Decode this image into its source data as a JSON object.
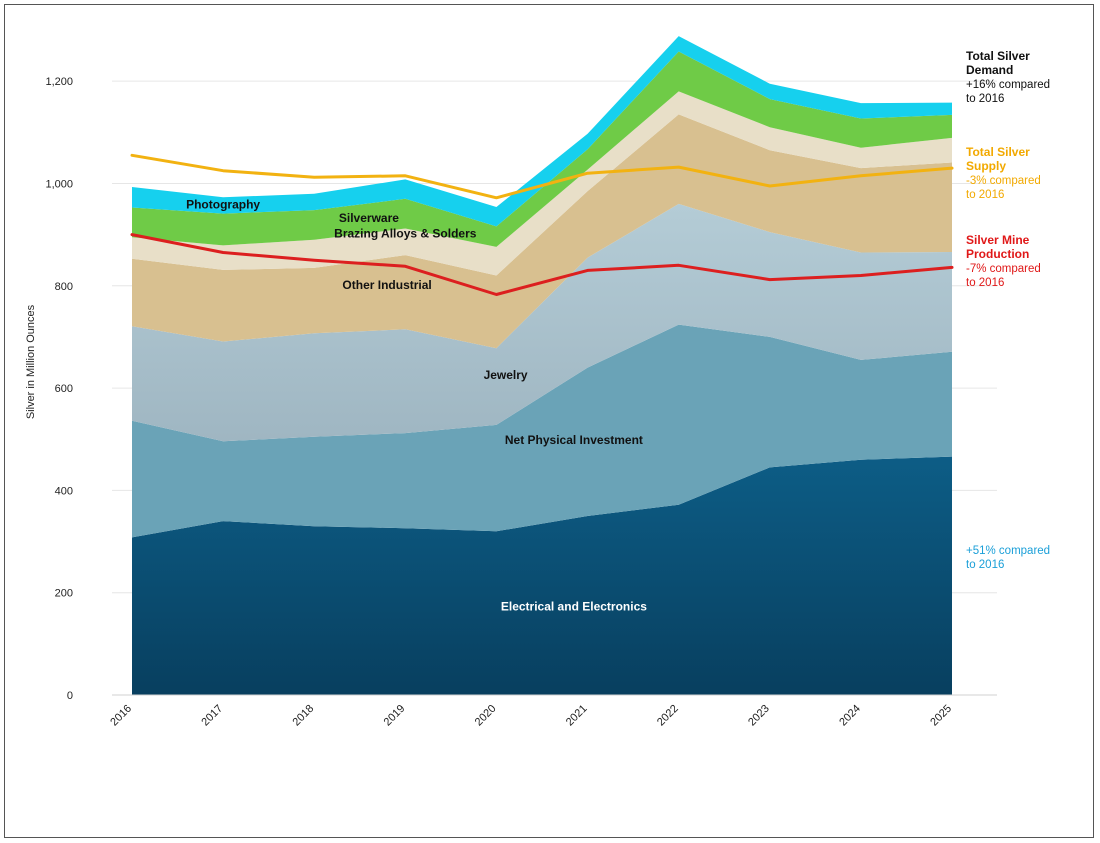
{
  "chart_data": {
    "type": "area",
    "stacked": true,
    "title": "",
    "xlabel": "",
    "ylabel": "Silver in Million Ounces",
    "categories": [
      "2016",
      "2017",
      "2018",
      "2019",
      "2020",
      "2021",
      "2022",
      "2023",
      "2024",
      "2025"
    ],
    "ylim": [
      0,
      1300
    ],
    "yticks": [
      0,
      200,
      400,
      600,
      800,
      1000,
      1200
    ],
    "ytick_labels": [
      "0",
      "200",
      "400",
      "600",
      "800",
      "1,000",
      "1,200"
    ],
    "grid": true,
    "series": [
      {
        "name": "Electrical and Electronics",
        "values": [
          308,
          340,
          330,
          326,
          320,
          350,
          372,
          445,
          460,
          466
        ],
        "color": "#0a4d74",
        "label_color": "#ffffff"
      },
      {
        "name": "Net Physical Investment",
        "values": [
          228,
          156,
          175,
          186,
          208,
          290,
          352,
          255,
          195,
          205
        ],
        "color": "#6aa3b7",
        "label_color": "#111111"
      },
      {
        "name": "Jewelry",
        "values": [
          185,
          195,
          202,
          203,
          150,
          215,
          236,
          205,
          210,
          195
        ],
        "color": "#a9c3cf",
        "label_color": "#111111"
      },
      {
        "name": "Other Industrial",
        "values": [
          132,
          140,
          128,
          145,
          142,
          130,
          175,
          160,
          165,
          175
        ],
        "color": "#d8c090",
        "label_color": "#111111"
      },
      {
        "name": "Brazing Alloys & Solders",
        "values": [
          42,
          48,
          55,
          52,
          56,
          42,
          45,
          45,
          40,
          48
        ],
        "color": "#e8dfc8",
        "label_color": "#111111"
      },
      {
        "name": "Silverware",
        "values": [
          58,
          62,
          58,
          58,
          40,
          40,
          78,
          55,
          57,
          45
        ],
        "color": "#6fcb47",
        "label_color": "#111111"
      },
      {
        "name": "Photography",
        "values": [
          40,
          32,
          32,
          38,
          38,
          30,
          30,
          30,
          30,
          24
        ],
        "color": "#16d0ee",
        "label_color": "#111111"
      }
    ],
    "lines": [
      {
        "name": "Total Silver Supply",
        "values": [
          1055,
          1025,
          1012,
          1015,
          972,
          1020,
          1032,
          995,
          1015,
          1030
        ],
        "color": "#f2b211"
      },
      {
        "name": "Silver Mine Production",
        "values": [
          900,
          865,
          850,
          838,
          783,
          830,
          840,
          812,
          820,
          836
        ],
        "color": "#dc1f1f"
      }
    ],
    "annotations": [
      {
        "lines": [
          "Total Silver",
          "Demand",
          "+16% compared",
          " to 2016"
        ],
        "color": "#111111",
        "title_lines": 2
      },
      {
        "lines": [
          "Total  Silver",
          " Supply",
          "-3% compared",
          "to 2016"
        ],
        "color": "#f2a900",
        "title_lines": 2
      },
      {
        "lines": [
          "Silver Mine",
          "Production",
          "-7% compared",
          "to 2016"
        ],
        "color": "#e01818",
        "title_lines": 2
      },
      {
        "lines": [
          "+51% compared",
          "to 2016"
        ],
        "color": "#1a9fd8",
        "title_lines": 0
      }
    ]
  }
}
